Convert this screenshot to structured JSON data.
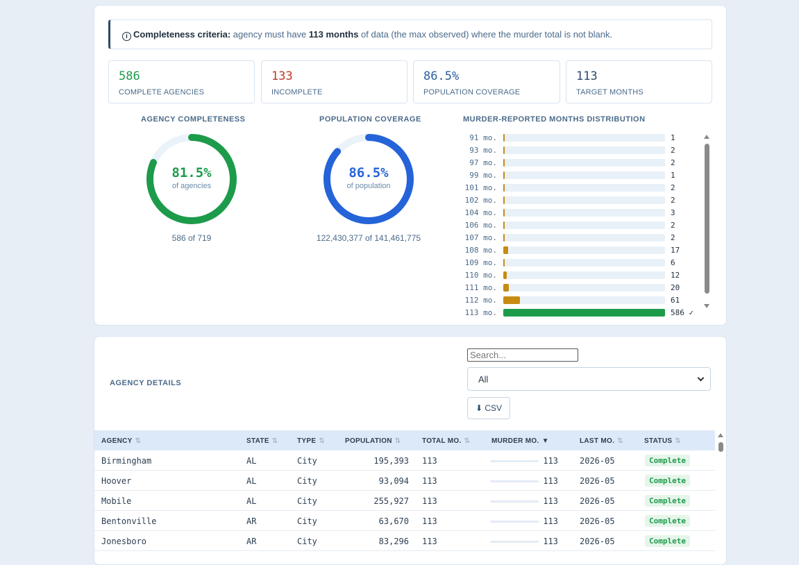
{
  "criteria": {
    "label": "Completeness criteria:",
    "text_before": " agency must have ",
    "highlight": "113 months",
    "text_after": " of data (the max observed) where the murder total is not blank."
  },
  "cards": [
    {
      "value": "586",
      "label": "COMPLETE AGENCIES",
      "color": "#1d9b4b"
    },
    {
      "value": "133",
      "label": "INCOMPLETE",
      "color": "#c0392b"
    },
    {
      "value": "86.5%",
      "label": "POPULATION COVERAGE",
      "color": "#2c5f9e"
    },
    {
      "value": "113",
      "label": "TARGET MONTHS",
      "color": "#2c4a68"
    }
  ],
  "agency_completeness": {
    "title": "AGENCY COMPLETENESS",
    "pct_label": "81.5%",
    "pct_value": 81.5,
    "sub": "of agencies",
    "caption": "586 of 719",
    "color": "#1d9b4b"
  },
  "population_coverage": {
    "title": "POPULATION COVERAGE",
    "pct_label": "86.5%",
    "pct_value": 86.5,
    "sub": "of population",
    "caption": "122,430,377 of 141,461,775",
    "color": "#2563d8"
  },
  "distribution": {
    "title": "MURDER-REPORTED MONTHS DISTRIBUTION",
    "max": 586,
    "rows": [
      {
        "label": "91 mo.",
        "count": 1,
        "text": "1"
      },
      {
        "label": "93 mo.",
        "count": 2,
        "text": "2"
      },
      {
        "label": "97 mo.",
        "count": 2,
        "text": "2"
      },
      {
        "label": "99 mo.",
        "count": 1,
        "text": "1"
      },
      {
        "label": "101 mo.",
        "count": 2,
        "text": "2"
      },
      {
        "label": "102 mo.",
        "count": 2,
        "text": "2"
      },
      {
        "label": "104 mo.",
        "count": 3,
        "text": "3"
      },
      {
        "label": "106 mo.",
        "count": 2,
        "text": "2"
      },
      {
        "label": "107 mo.",
        "count": 2,
        "text": "2"
      },
      {
        "label": "108 mo.",
        "count": 17,
        "text": "17"
      },
      {
        "label": "109 mo.",
        "count": 6,
        "text": "6"
      },
      {
        "label": "110 mo.",
        "count": 12,
        "text": "12"
      },
      {
        "label": "111 mo.",
        "count": 20,
        "text": "20"
      },
      {
        "label": "112 mo.",
        "count": 61,
        "text": "61"
      },
      {
        "label": "113 mo.",
        "count": 586,
        "text": "586 ✓",
        "complete": true
      }
    ]
  },
  "details": {
    "title": "AGENCY DETAILS",
    "search_placeholder": "Search...",
    "filter_selected": "All",
    "csv_label": "⬇ CSV",
    "columns": [
      "AGENCY",
      "STATE",
      "TYPE",
      "POPULATION",
      "TOTAL MO.",
      "MURDER MO.",
      "LAST MO.",
      "STATUS"
    ],
    "sort_icon": "⇅",
    "sort_active_icon": "▼",
    "rows": [
      {
        "agency": "Birmingham",
        "state": "AL",
        "type": "City",
        "population": "195,393",
        "total": "113",
        "murder": "113",
        "last": "2026-05",
        "status": "Complete"
      },
      {
        "agency": "Hoover",
        "state": "AL",
        "type": "City",
        "population": "93,094",
        "total": "113",
        "murder": "113",
        "last": "2026-05",
        "status": "Complete"
      },
      {
        "agency": "Mobile",
        "state": "AL",
        "type": "City",
        "population": "255,927",
        "total": "113",
        "murder": "113",
        "last": "2026-05",
        "status": "Complete"
      },
      {
        "agency": "Bentonville",
        "state": "AR",
        "type": "City",
        "population": "63,670",
        "total": "113",
        "murder": "113",
        "last": "2026-05",
        "status": "Complete"
      },
      {
        "agency": "Jonesboro",
        "state": "AR",
        "type": "City",
        "population": "83,296",
        "total": "113",
        "murder": "113",
        "last": "2026-05",
        "status": "Complete"
      }
    ]
  }
}
